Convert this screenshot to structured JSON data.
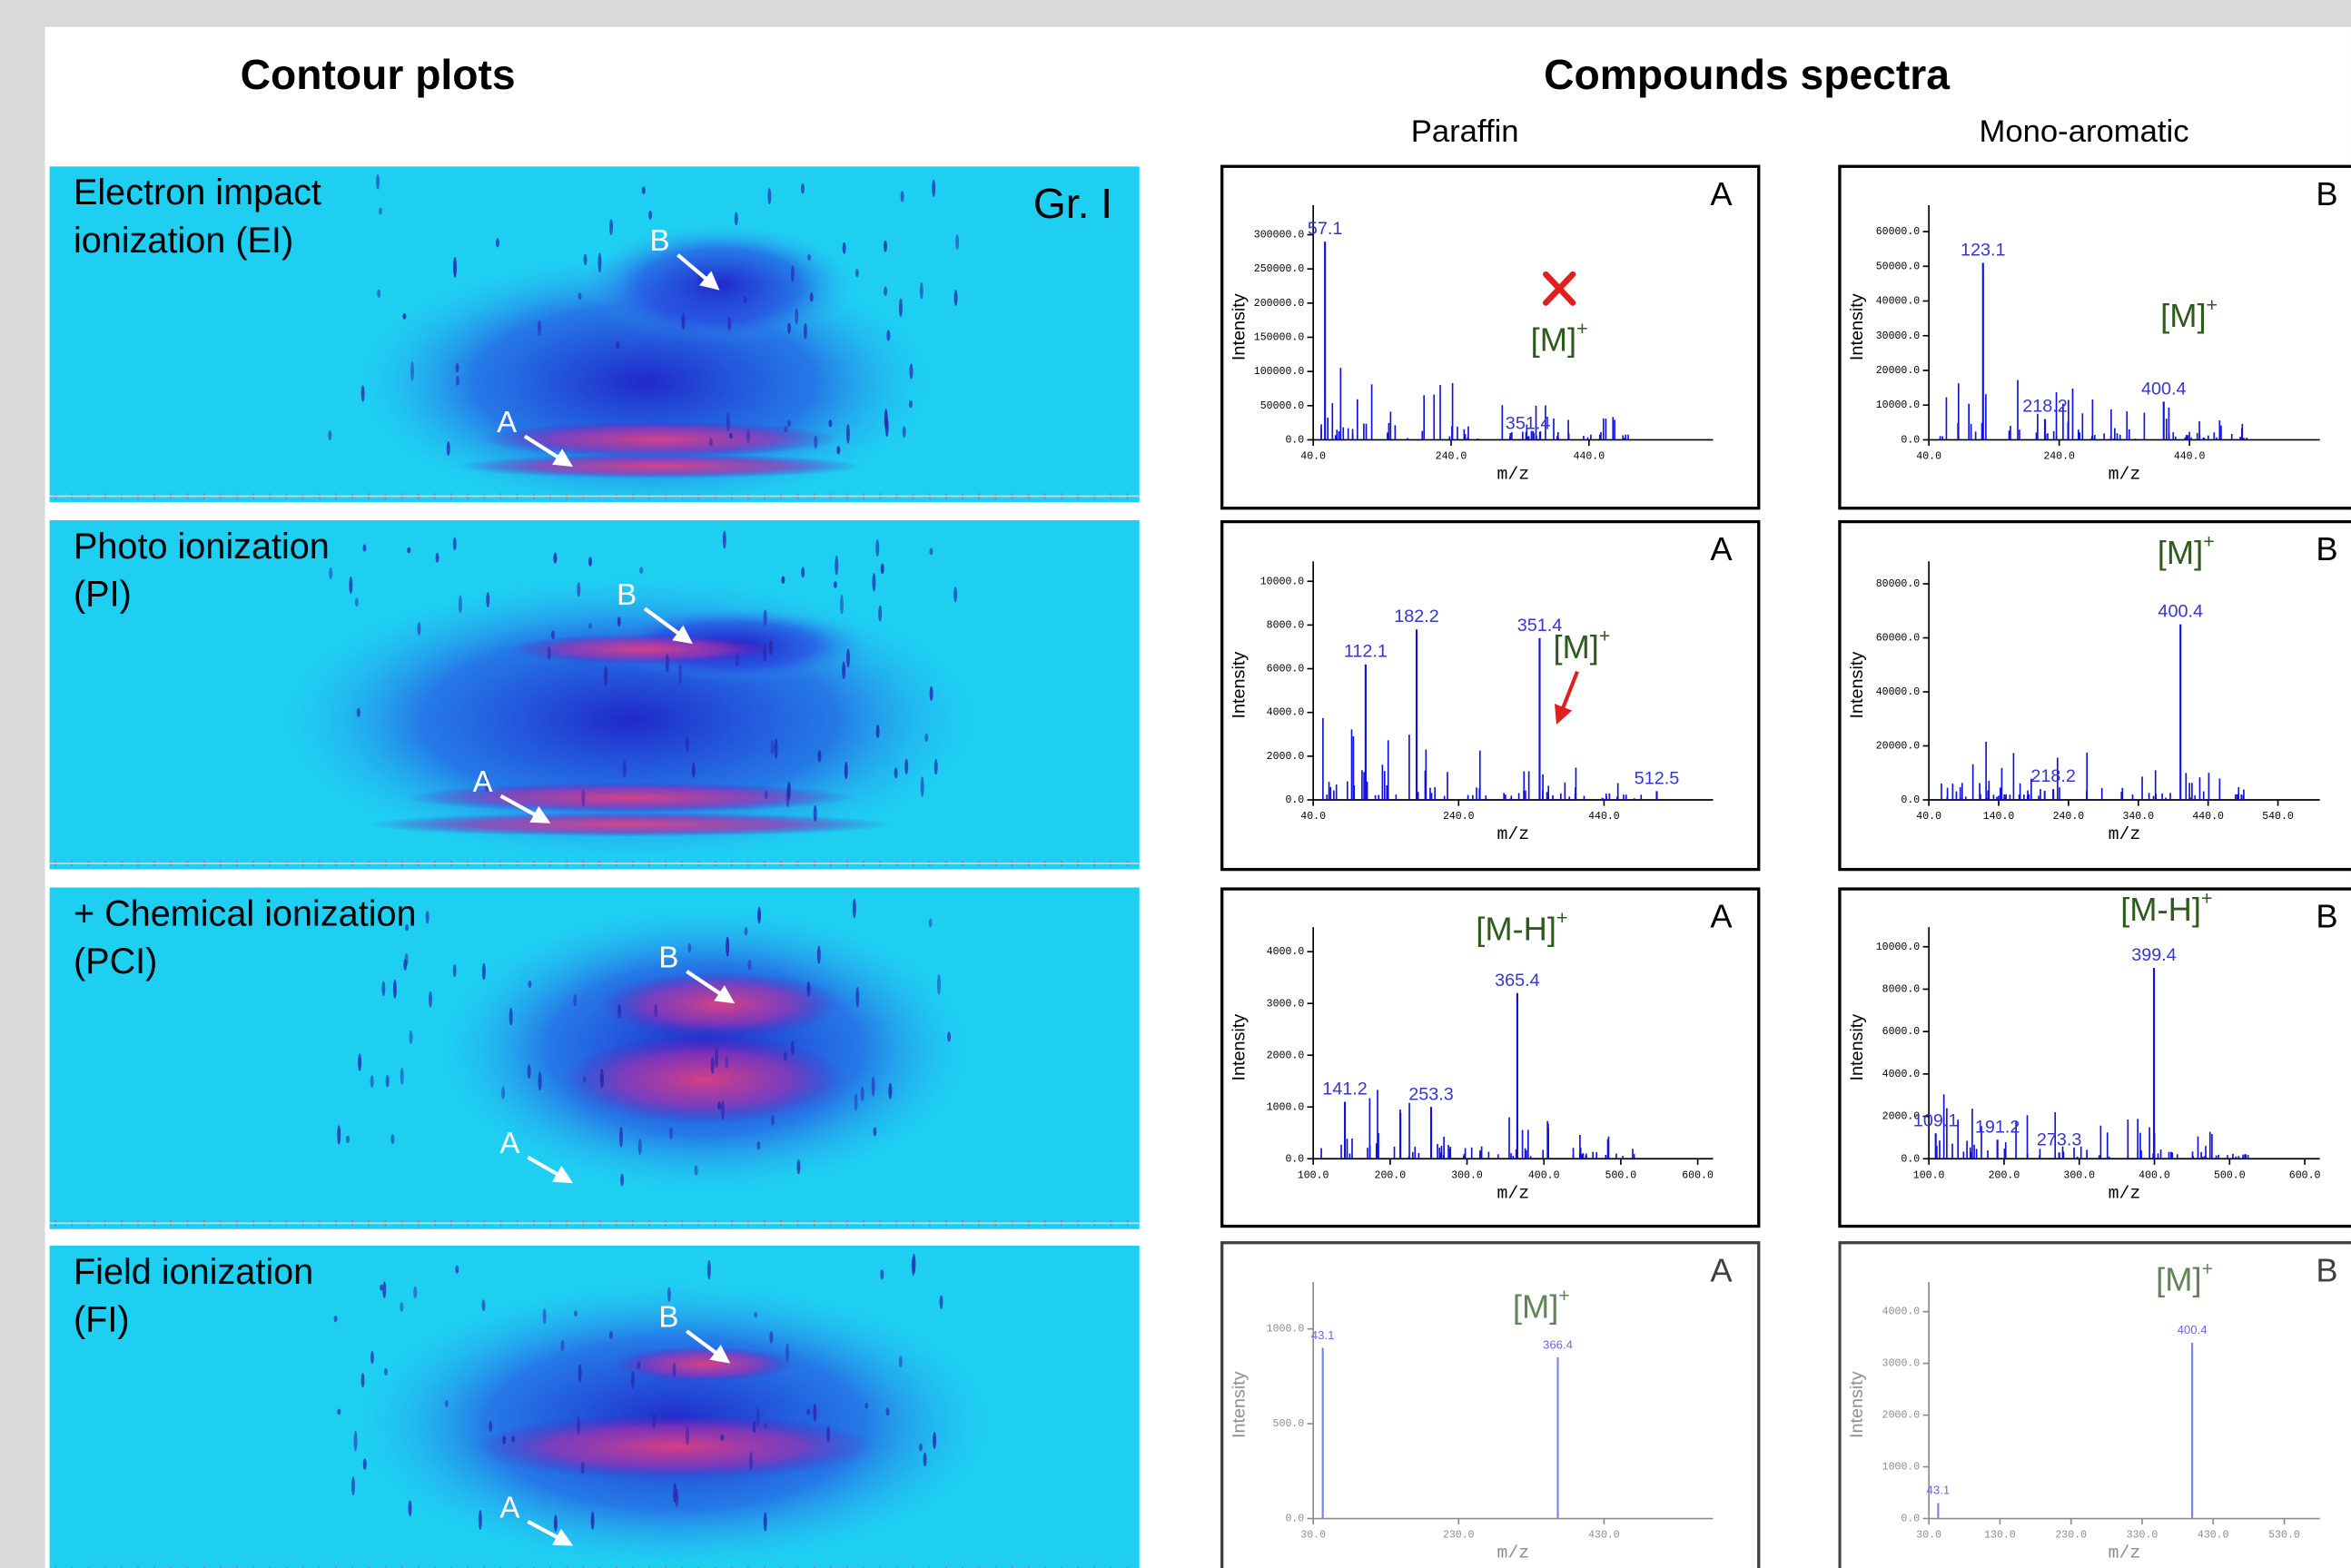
{
  "headers": {
    "contour": "Contour plots",
    "spectra": "Compounds spectra"
  },
  "columns": [
    "Paraffin",
    "Mono-aromatic"
  ],
  "contour_panels": [
    {
      "lines": [
        "Electron impact",
        "ionization (EI)"
      ],
      "tag": "Gr. I",
      "labels": [
        "A",
        "B"
      ]
    },
    {
      "lines": [
        "Photo ionization",
        "(PI)"
      ],
      "labels": [
        "A",
        "B"
      ]
    },
    {
      "lines": [
        "+ Chemical ionization",
        "(PCI)"
      ],
      "labels": [
        "A",
        "B"
      ]
    },
    {
      "lines": [
        "Field ionization",
        "(FI)"
      ],
      "labels": [
        "A",
        "B"
      ]
    }
  ],
  "spectra": [
    {
      "corner": "A",
      "y_label": "Intensity",
      "x_label": "m/z",
      "xlim": [
        40,
        620
      ],
      "ylim": [
        0,
        330000
      ],
      "xticks": [
        {
          "value": 40,
          "label": "40.0"
        },
        {
          "value": 240,
          "label": "240.0"
        },
        {
          "value": 440,
          "label": "440.0"
        }
      ],
      "yticks": [
        {
          "value": 0,
          "label": "0.0"
        },
        {
          "value": 50000,
          "label": "50000.0"
        },
        {
          "value": 100000,
          "label": "100000.0"
        },
        {
          "value": 150000,
          "label": "150000.0"
        },
        {
          "value": 200000,
          "label": "200000.0"
        },
        {
          "value": 250000,
          "label": "250000.0"
        },
        {
          "value": 300000,
          "label": "300000.0"
        }
      ],
      "peaks": [
        {
          "mz": 57.1,
          "intensity": 290000
        },
        {
          "mz": 351.4,
          "intensity": 5000
        }
      ],
      "annotation": {
        "text": "[M]",
        "sup": "+"
      }
    },
    {
      "corner": "B",
      "y_label": "Intensity",
      "x_label": "m/z",
      "xlim": [
        40,
        640
      ],
      "ylim": [
        0,
        65000
      ],
      "xticks": [
        {
          "value": 40,
          "label": "40.0"
        },
        {
          "value": 240,
          "label": "240.0"
        },
        {
          "value": 440,
          "label": "440.0"
        }
      ],
      "yticks": [
        {
          "value": 0,
          "label": "0.0"
        },
        {
          "value": 10000,
          "label": "10000.0"
        },
        {
          "value": 20000,
          "label": "20000.0"
        },
        {
          "value": 30000,
          "label": "30000.0"
        },
        {
          "value": 40000,
          "label": "40000.0"
        },
        {
          "value": 50000,
          "label": "50000.0"
        },
        {
          "value": 60000,
          "label": "60000.0"
        }
      ],
      "peaks": [
        {
          "mz": 123.1,
          "intensity": 51000
        },
        {
          "mz": 218.2,
          "intensity": 6000
        },
        {
          "mz": 400.4,
          "intensity": 11000
        }
      ],
      "annotation": {
        "text": "[M]",
        "sup": "+"
      }
    },
    {
      "corner": "A",
      "y_label": "Intensity",
      "x_label": "m/z",
      "xlim": [
        40,
        590
      ],
      "ylim": [
        0,
        10500
      ],
      "xticks": [
        {
          "value": 40,
          "label": "40.0"
        },
        {
          "value": 240,
          "label": "240.0"
        },
        {
          "value": 440,
          "label": "440.0"
        }
      ],
      "yticks": [
        {
          "value": 0,
          "label": "0.0"
        },
        {
          "value": 2000,
          "label": "2000.0"
        },
        {
          "value": 4000,
          "label": "4000.0"
        },
        {
          "value": 6000,
          "label": "6000.0"
        },
        {
          "value": 8000,
          "label": "8000.0"
        },
        {
          "value": 10000,
          "label": "10000.0"
        }
      ],
      "peaks": [
        {
          "mz": 112.1,
          "intensity": 6200
        },
        {
          "mz": 182.2,
          "intensity": 7800
        },
        {
          "mz": 351.4,
          "intensity": 7400
        },
        {
          "mz": 512.5,
          "intensity": 400
        }
      ],
      "annotation": {
        "text": "[M]",
        "sup": "+"
      }
    },
    {
      "corner": "B",
      "y_label": "Intensity",
      "x_label": "m/z",
      "xlim": [
        40,
        600
      ],
      "ylim": [
        0,
        85000
      ],
      "xticks": [
        {
          "value": 40,
          "label": "40.0"
        },
        {
          "value": 140,
          "label": "140.0"
        },
        {
          "value": 240,
          "label": "240.0"
        },
        {
          "value": 340,
          "label": "340.0"
        },
        {
          "value": 440,
          "label": "440.0"
        },
        {
          "value": 540,
          "label": "540.0"
        }
      ],
      "yticks": [
        {
          "value": 0,
          "label": "0.0"
        },
        {
          "value": 20000,
          "label": "20000.0"
        },
        {
          "value": 40000,
          "label": "40000.0"
        },
        {
          "value": 60000,
          "label": "60000.0"
        },
        {
          "value": 80000,
          "label": "80000.0"
        }
      ],
      "peaks": [
        {
          "mz": 218.2,
          "intensity": 4000
        },
        {
          "mz": 400.4,
          "intensity": 65000
        }
      ],
      "annotation": {
        "text": "[M]",
        "sup": "+"
      }
    },
    {
      "corner": "A",
      "y_label": "Intensity",
      "x_label": "m/z",
      "xlim": [
        100,
        620
      ],
      "ylim": [
        0,
        4300
      ],
      "xticks": [
        {
          "value": 100,
          "label": "100.0"
        },
        {
          "value": 200,
          "label": "200.0"
        },
        {
          "value": 300,
          "label": "300.0"
        },
        {
          "value": 400,
          "label": "400.0"
        },
        {
          "value": 500,
          "label": "500.0"
        },
        {
          "value": 600,
          "label": "600.0"
        }
      ],
      "yticks": [
        {
          "value": 0,
          "label": "0.0"
        },
        {
          "value": 1000,
          "label": "1000.0"
        },
        {
          "value": 2000,
          "label": "2000.0"
        },
        {
          "value": 3000,
          "label": "3000.0"
        },
        {
          "value": 4000,
          "label": "4000.0"
        }
      ],
      "peaks": [
        {
          "mz": 141.2,
          "intensity": 1100
        },
        {
          "mz": 253.3,
          "intensity": 1000
        },
        {
          "mz": 365.4,
          "intensity": 3200
        }
      ],
      "annotation": {
        "text": "[M-H]",
        "sup": "+"
      }
    },
    {
      "corner": "B",
      "y_label": "Intensity",
      "x_label": "m/z",
      "xlim": [
        100,
        620
      ],
      "ylim": [
        0,
        10500
      ],
      "xticks": [
        {
          "value": 100,
          "label": "100.0"
        },
        {
          "value": 200,
          "label": "200.0"
        },
        {
          "value": 300,
          "label": "300.0"
        },
        {
          "value": 400,
          "label": "400.0"
        },
        {
          "value": 500,
          "label": "500.0"
        },
        {
          "value": 600,
          "label": "600.0"
        }
      ],
      "yticks": [
        {
          "value": 0,
          "label": "0.0"
        },
        {
          "value": 2000,
          "label": "2000.0"
        },
        {
          "value": 4000,
          "label": "4000.0"
        },
        {
          "value": 6000,
          "label": "6000.0"
        },
        {
          "value": 8000,
          "label": "8000.0"
        },
        {
          "value": 10000,
          "label": "10000.0"
        }
      ],
      "peaks": [
        {
          "mz": 109.1,
          "intensity": 1200
        },
        {
          "mz": 191.2,
          "intensity": 900
        },
        {
          "mz": 273.3,
          "intensity": 300
        },
        {
          "mz": 399.4,
          "intensity": 9000
        }
      ],
      "annotation": {
        "text": "[M-H]",
        "sup": "+"
      }
    },
    {
      "corner": "A",
      "y_label": "Intensity",
      "x_label": "m/z",
      "xlim": [
        30,
        580
      ],
      "ylim": [
        0,
        1200
      ],
      "xticks": [
        {
          "value": 30,
          "label": "30.0"
        },
        {
          "value": 230,
          "label": "230.0"
        },
        {
          "value": 430,
          "label": "430.0"
        }
      ],
      "yticks": [
        {
          "value": 0,
          "label": "0.0"
        },
        {
          "value": 500,
          "label": "500.0"
        },
        {
          "value": 1000,
          "label": "1000.0"
        }
      ],
      "peaks": [
        {
          "mz": 43.1,
          "intensity": 900
        },
        {
          "mz": 366.4,
          "intensity": 850
        }
      ],
      "annotation": {
        "text": "[M]",
        "sup": "+"
      }
    },
    {
      "corner": "B",
      "y_label": "Intensity",
      "x_label": "m/z",
      "xlim": [
        30,
        580
      ],
      "ylim": [
        0,
        4400
      ],
      "xticks": [
        {
          "value": 30,
          "label": "30.0"
        },
        {
          "value": 130,
          "label": "130.0"
        },
        {
          "value": 230,
          "label": "230.0"
        },
        {
          "value": 330,
          "label": "330.0"
        },
        {
          "value": 430,
          "label": "430.0"
        },
        {
          "value": 530,
          "label": "530.0"
        }
      ],
      "yticks": [
        {
          "value": 0,
          "label": "0.0"
        },
        {
          "value": 1000,
          "label": "1000.0"
        },
        {
          "value": 2000,
          "label": "2000.0"
        },
        {
          "value": 3000,
          "label": "3000.0"
        },
        {
          "value": 4000,
          "label": "4000.0"
        }
      ],
      "peaks": [
        {
          "mz": 43.1,
          "intensity": 300
        },
        {
          "mz": 400.4,
          "intensity": 3400
        }
      ],
      "annotation": {
        "text": "[M]",
        "sup": "+"
      }
    }
  ]
}
